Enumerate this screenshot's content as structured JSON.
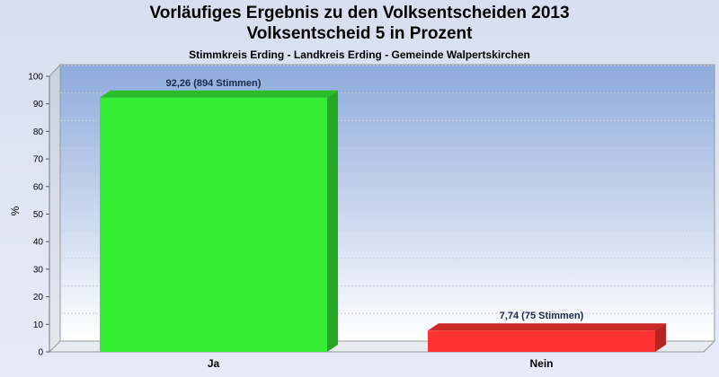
{
  "chart_data": {
    "type": "bar",
    "title": "Vorläufiges Ergebnis zu den Volksentscheiden 2013",
    "subtitle_line": "Volksentscheid 5 in Prozent",
    "subtitle": "Stimmkreis Erding - Landkreis Erding - Gemeinde Walpertskirchen",
    "xlabel": "",
    "ylabel": "%",
    "ylim": [
      0,
      100
    ],
    "yticks": [
      0,
      10,
      20,
      30,
      40,
      50,
      60,
      70,
      80,
      90,
      100
    ],
    "categories": [
      "Ja",
      "Nein"
    ],
    "values": [
      92.26,
      7.74
    ],
    "data_labels": [
      "92,26 (894 Stimmen)",
      "7,74 (75 Stimmen)"
    ],
    "colors": [
      "#33ee33",
      "#ff3333"
    ],
    "grid": true,
    "legend": "none"
  }
}
